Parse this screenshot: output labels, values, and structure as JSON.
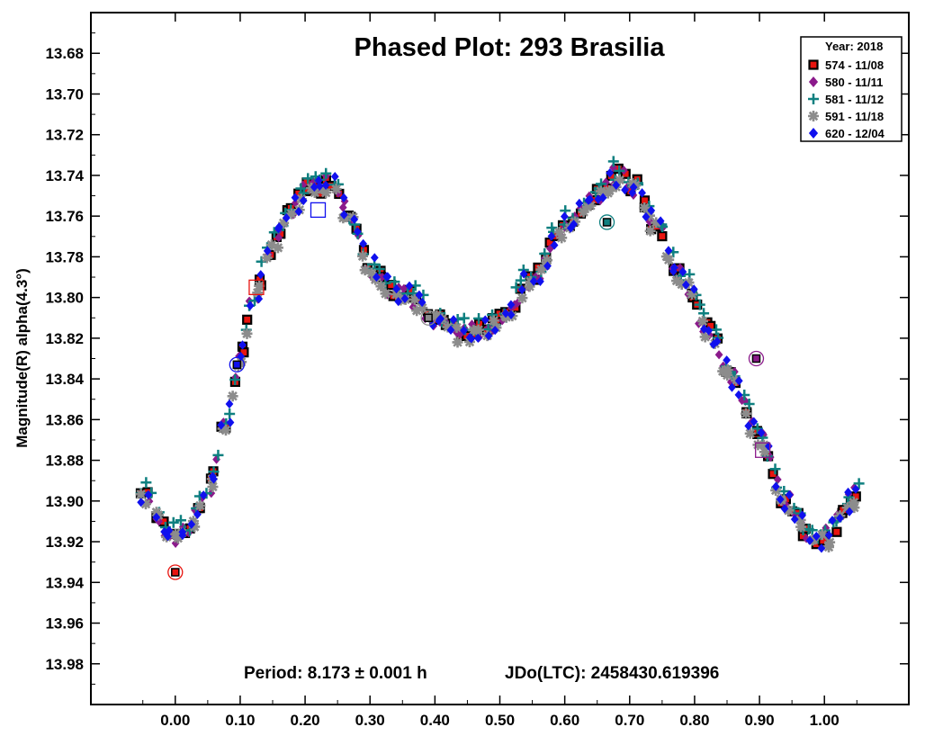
{
  "chart_data": {
    "type": "scatter",
    "title": "Phased Plot: 293 Brasilia",
    "ylabel": "Magnitude(R) alpha(4.3°)",
    "xlabel": "",
    "xlim": [
      -0.13,
      1.13
    ],
    "ylim": [
      13.66,
      14.0
    ],
    "y_inverted": true,
    "x_ticks": [
      "0.00",
      "0.10",
      "0.20",
      "0.30",
      "0.40",
      "0.50",
      "0.60",
      "0.70",
      "0.80",
      "0.90",
      "1.00"
    ],
    "y_ticks": [
      "13.68",
      "13.70",
      "13.72",
      "13.74",
      "13.76",
      "13.78",
      "13.80",
      "13.82",
      "13.84",
      "13.86",
      "13.88",
      "13.90",
      "13.92",
      "13.94",
      "13.96",
      "13.98"
    ],
    "period_text": "Period: 8.173 ± 0.001 h",
    "jdo_text": "JDo(LTC): 2458430.619396",
    "legend": {
      "title": "Year: 2018",
      "position": "top-right",
      "entries": [
        {
          "label": "574 - 11/08",
          "marker": "square",
          "color": "#e8140f"
        },
        {
          "label": "580 - 11/11",
          "marker": "diamond",
          "color": "#8b1a8b"
        },
        {
          "label": "581 - 11/12",
          "marker": "plus",
          "color": "#0f8080"
        },
        {
          "label": "591 - 11/18",
          "marker": "asterisk",
          "color": "#8c8c8c"
        },
        {
          "label": "620 - 12/04",
          "marker": "diamond",
          "color": "#1010ee"
        }
      ]
    },
    "curve": {
      "x": [
        -0.05,
        0.0,
        0.02,
        0.05,
        0.08,
        0.1,
        0.12,
        0.15,
        0.18,
        0.21,
        0.24,
        0.27,
        0.3,
        0.33,
        0.36,
        0.4,
        0.45,
        0.5,
        0.55,
        0.6,
        0.65,
        0.68,
        0.71,
        0.74,
        0.78,
        0.82,
        0.86,
        0.9,
        0.94,
        0.98,
        1.0,
        1.05
      ],
      "y": [
        13.898,
        13.918,
        13.914,
        13.895,
        13.86,
        13.83,
        13.8,
        13.775,
        13.755,
        13.745,
        13.745,
        13.76,
        13.785,
        13.795,
        13.8,
        13.81,
        13.818,
        13.812,
        13.79,
        13.765,
        13.75,
        13.74,
        13.745,
        13.765,
        13.79,
        13.815,
        13.84,
        13.87,
        13.9,
        13.918,
        13.918,
        13.898
      ]
    },
    "series": [
      {
        "name": "574 - 11/08",
        "noise": 0.004,
        "seed": 11
      },
      {
        "name": "580 - 11/11",
        "noise": 0.005,
        "seed": 23
      },
      {
        "name": "581 - 11/12",
        "noise": 0.005,
        "seed": 37,
        "offset": -0.003
      },
      {
        "name": "591 - 11/18",
        "noise": 0.004,
        "seed": 53,
        "offset": 0.002
      },
      {
        "name": "620 - 12/04",
        "noise": 0.006,
        "seed": 71
      }
    ],
    "highlighted_points": [
      {
        "x": 0.0,
        "y": 13.935,
        "marker": "circle",
        "color": "#e8140f"
      },
      {
        "x": 0.095,
        "y": 13.833,
        "marker": "circle",
        "color": "#1010ee"
      },
      {
        "x": 0.125,
        "y": 13.795,
        "marker": "square",
        "color": "#e8140f"
      },
      {
        "x": 0.22,
        "y": 13.757,
        "marker": "square",
        "color": "#1010ee"
      },
      {
        "x": 0.39,
        "y": 13.81,
        "marker": "circle",
        "color": "#8c8c8c"
      },
      {
        "x": 0.665,
        "y": 13.763,
        "marker": "circle",
        "color": "#0f8080"
      },
      {
        "x": 0.895,
        "y": 13.83,
        "marker": "circle",
        "color": "#8b1a8b"
      },
      {
        "x": 0.905,
        "y": 13.875,
        "marker": "square",
        "color": "#8b1a8b"
      }
    ]
  }
}
